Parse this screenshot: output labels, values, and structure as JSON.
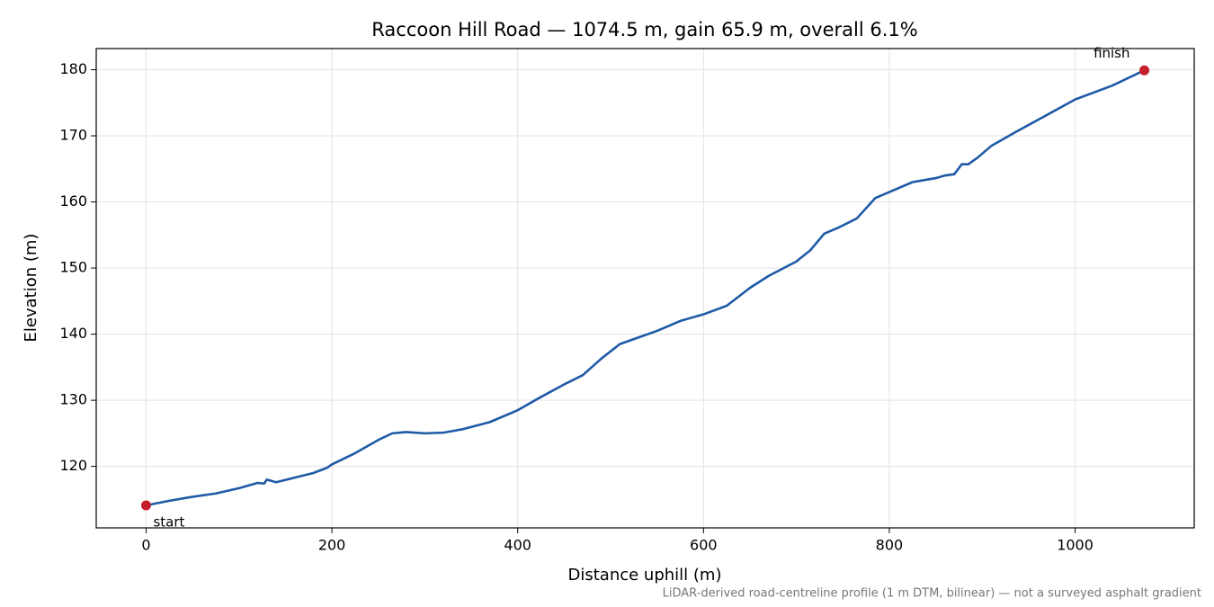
{
  "chart_data": {
    "type": "line",
    "title": "Raccoon Hill Road — 1074.5 m, gain 65.9 m, overall 6.1%",
    "x_label": "Distance uphill (m)",
    "y_label": "Elevation (m)",
    "footnote": "LiDAR-derived road-centreline profile (1 m DTM, bilinear) — not a surveyed asphalt gradient",
    "x": [
      0,
      25,
      50,
      75,
      100,
      120,
      127,
      130,
      140,
      160,
      180,
      195,
      200,
      225,
      250,
      265,
      280,
      300,
      320,
      340,
      370,
      400,
      425,
      450,
      470,
      490,
      510,
      530,
      550,
      575,
      600,
      625,
      650,
      670,
      700,
      715,
      730,
      745,
      765,
      785,
      800,
      825,
      850,
      860,
      870,
      878,
      885,
      895,
      910,
      935,
      965,
      1000,
      1040,
      1074.5
    ],
    "series": [
      {
        "name": "Elevation",
        "color": "#1f5aa6",
        "values": [
          114.1,
          114.8,
          115.4,
          115.9,
          116.7,
          117.5,
          117.4,
          118.0,
          117.6,
          118.3,
          119.0,
          119.8,
          120.3,
          122.0,
          124.0,
          125.0,
          125.2,
          125.0,
          125.1,
          125.6,
          126.7,
          128.5,
          130.5,
          132.4,
          133.8,
          136.3,
          138.5,
          139.5,
          140.5,
          142.0,
          143.0,
          144.3,
          147.0,
          148.8,
          151.0,
          152.7,
          155.2,
          156.1,
          157.5,
          160.6,
          161.5,
          163.0,
          163.6,
          164.0,
          164.2,
          165.7,
          165.7,
          166.7,
          168.5,
          170.5,
          172.8,
          175.5,
          177.6,
          179.9
        ]
      }
    ],
    "annotations": [
      {
        "text": "start",
        "x": 0,
        "y": 114.1,
        "color": "#c41e2a"
      },
      {
        "text": "finish",
        "x": 1074.5,
        "y": 179.9,
        "color": "#c41e2a"
      }
    ],
    "xlim": [
      -53.7,
      1128.2
    ],
    "ylim": [
      110.7,
      183.2
    ],
    "xticks": [
      0,
      200,
      400,
      600,
      800,
      1000
    ],
    "yticks": [
      120,
      130,
      140,
      150,
      160,
      170,
      180
    ],
    "grid": true
  }
}
